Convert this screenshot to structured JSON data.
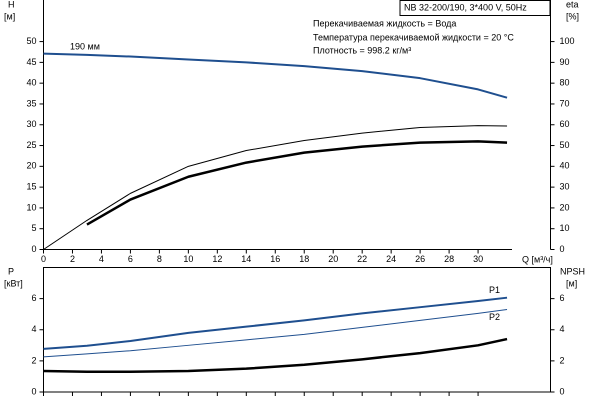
{
  "chart_data": [
    {
      "type": "line",
      "title": "NB 32-200/190, 3*400 V, 50Hz",
      "annotations": [
        "Перекачиваемая жидкость = Вода",
        "Температура перекачиваемой жидкости = 20 °C",
        "Плотность = 998.2 кг/м³"
      ],
      "curve_label": "190 мм",
      "ylabel": "H",
      "yunit": "[м]",
      "y2label": "eta",
      "y2unit": "[%]",
      "xlabel": "Q [м³/ч]",
      "x": [
        0,
        3,
        6,
        10,
        14,
        18,
        22,
        26,
        30,
        32
      ],
      "xlim": [
        0,
        35
      ],
      "xticks": [
        0,
        2,
        4,
        6,
        8,
        10,
        12,
        14,
        16,
        18,
        20,
        22,
        24,
        26,
        28,
        30
      ],
      "ylim": [
        0,
        60
      ],
      "yticks": [
        0,
        5,
        10,
        15,
        20,
        25,
        30,
        35,
        40,
        45,
        50
      ],
      "y2lim": [
        0,
        120
      ],
      "y2ticks": [
        0,
        10,
        20,
        30,
        40,
        50,
        60,
        70,
        80,
        90,
        100
      ],
      "series": [
        {
          "color": "#1f4f8f",
          "width": 2,
          "values": [
            47.1,
            46.8,
            46.4,
            45.7,
            45.0,
            44.1,
            42.9,
            41.2,
            38.5,
            36.5
          ]
        },
        {
          "color": "#000000",
          "width": 1,
          "axis": "y2",
          "values": [
            0,
            14,
            27,
            40,
            47.6,
            52.4,
            56,
            58.7,
            59.6,
            59.4
          ]
        },
        {
          "color": "#000000",
          "width": 2.5,
          "axis": "y2",
          "values": [
            null,
            12,
            24,
            35,
            41.8,
            46.6,
            49.5,
            51.4,
            52,
            51.4
          ]
        }
      ]
    },
    {
      "type": "line",
      "ylabel": "P",
      "yunit": "[кВт]",
      "y2label": "NPSH",
      "y2unit": "[м]",
      "x": [
        0,
        3,
        6,
        10,
        14,
        18,
        22,
        26,
        30,
        32
      ],
      "xlim": [
        0,
        35
      ],
      "ylim": [
        0,
        8
      ],
      "yticks": [
        0,
        2,
        4,
        6
      ],
      "y2lim": [
        0,
        8
      ],
      "y2ticks": [
        0,
        2,
        4,
        6
      ],
      "series": [
        {
          "name": "P1",
          "color": "#1f4f8f",
          "width": 2,
          "values": [
            2.77,
            2.97,
            3.28,
            3.8,
            4.2,
            4.6,
            5.05,
            5.45,
            5.85,
            6.06
          ]
        },
        {
          "name": "P2",
          "color": "#1f4f8f",
          "width": 1,
          "values": [
            2.26,
            2.45,
            2.65,
            3.0,
            3.35,
            3.7,
            4.15,
            4.6,
            5.05,
            5.3
          ]
        },
        {
          "color": "#000000",
          "width": 2.5,
          "axis": "y2",
          "values": [
            1.35,
            1.3,
            1.3,
            1.35,
            1.5,
            1.75,
            2.1,
            2.5,
            3.0,
            3.4
          ]
        }
      ]
    }
  ]
}
